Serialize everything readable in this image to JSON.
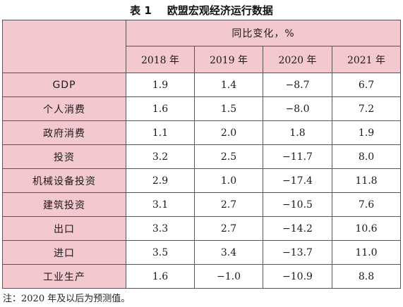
{
  "caption": {
    "number": "表 1",
    "title": "欧盟宏观经济运行数据"
  },
  "table": {
    "group_header": "同比变化，%",
    "years": [
      "2018 年",
      "2019 年",
      "2020 年",
      "2021 年"
    ],
    "rows": [
      {
        "label": "GDP",
        "values": [
          "1.9",
          "1.4",
          "−8.7",
          "6.7"
        ]
      },
      {
        "label": "个人消费",
        "values": [
          "1.6",
          "1.5",
          "−8.0",
          "7.2"
        ]
      },
      {
        "label": "政府消费",
        "values": [
          "1.1",
          "2.0",
          "1.8",
          "1.9"
        ]
      },
      {
        "label": "投资",
        "values": [
          "3.2",
          "2.5",
          "−11.7",
          "8.0"
        ]
      },
      {
        "label": "机械设备投资",
        "values": [
          "2.9",
          "1.0",
          "−17.4",
          "11.8"
        ]
      },
      {
        "label": "建筑投资",
        "values": [
          "3.1",
          "2.7",
          "−10.5",
          "7.6"
        ]
      },
      {
        "label": "出口",
        "values": [
          "3.3",
          "2.7",
          "−14.2",
          "10.6"
        ]
      },
      {
        "label": "进口",
        "values": [
          "3.5",
          "3.4",
          "−13.7",
          "11.0"
        ]
      },
      {
        "label": "工业生产",
        "values": [
          "1.6",
          "−1.0",
          "−10.9",
          "8.8"
        ]
      }
    ]
  },
  "note": "注：2020 年及以后为预测值。",
  "colors": {
    "header_fill": "#f4c8cf",
    "border": "#555555"
  }
}
